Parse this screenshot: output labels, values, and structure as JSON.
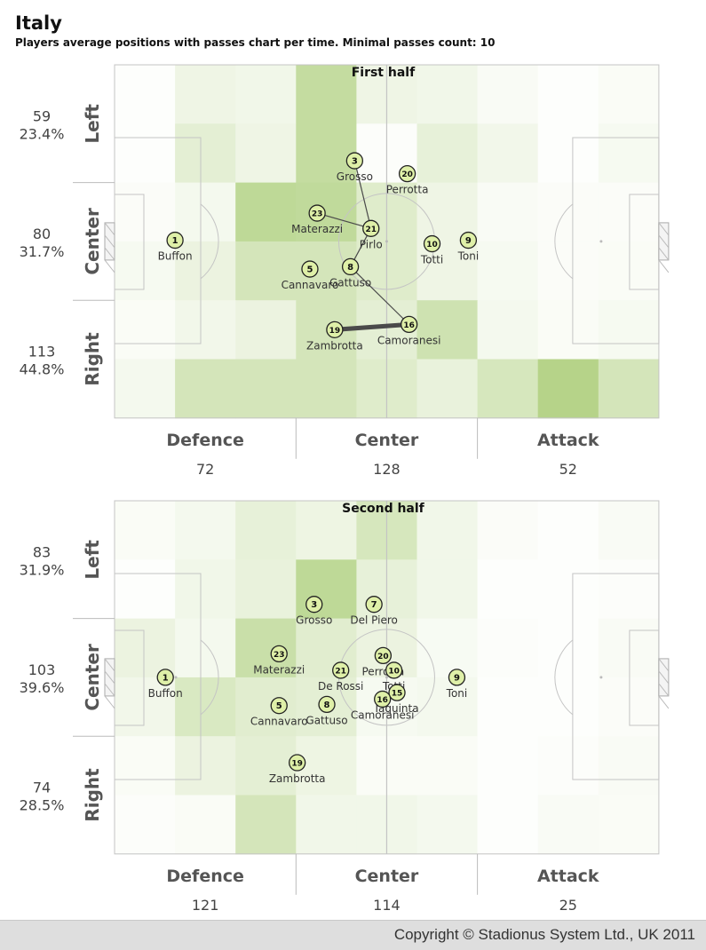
{
  "header": {
    "title": "Italy",
    "subtitle": "Players average positions with passes chart per time. Minimal passes count: 10"
  },
  "footer": {
    "copyright": "Copyright © Stadionus System Ltd., UK 2011"
  },
  "colors": {
    "heat_max": "#93bf52",
    "line": "#4a4a4a",
    "marker_fill": "#dff0a8"
  },
  "chart_data": [
    {
      "type": "heatmap",
      "title": "First half",
      "zone_labels": [
        "Defence",
        "Center",
        "Attack"
      ],
      "zone_counts": [
        "72",
        "128",
        "52"
      ],
      "band_labels": [
        "Left",
        "Center",
        "Right"
      ],
      "band_counts": [
        "59",
        "80",
        "113"
      ],
      "band_percents": [
        "23.4%",
        "31.7%",
        "44.8%"
      ],
      "heat": [
        [
          0.02,
          0.15,
          0.13,
          0.55,
          0.15,
          0.13,
          0.06,
          0.02,
          0.05
        ],
        [
          0.02,
          0.25,
          0.15,
          0.55,
          0.03,
          0.22,
          0.12,
          0.02,
          0.08
        ],
        [
          0.04,
          0.1,
          0.6,
          0.58,
          0.3,
          0.15,
          0.06,
          0.04,
          0.04
        ],
        [
          0.08,
          0.18,
          0.4,
          0.4,
          0.3,
          0.15,
          0.08,
          0.04,
          0.05
        ],
        [
          0.05,
          0.12,
          0.18,
          0.4,
          0.25,
          0.45,
          0.1,
          0.05,
          0.08
        ],
        [
          0.1,
          0.4,
          0.4,
          0.4,
          0.3,
          0.2,
          0.38,
          0.68,
          0.4
        ]
      ],
      "players": [
        {
          "number": "1",
          "name": "Buffon",
          "x": 1.0,
          "y": 2.98
        },
        {
          "number": "3",
          "name": "Grosso",
          "x": 3.97,
          "y": 1.63
        },
        {
          "number": "20",
          "name": "Perrotta",
          "x": 4.84,
          "y": 1.85
        },
        {
          "number": "23",
          "name": "Materazzi",
          "x": 3.35,
          "y": 2.52
        },
        {
          "number": "21",
          "name": "Pirlo",
          "x": 4.24,
          "y": 2.78
        },
        {
          "number": "10",
          "name": "Totti",
          "x": 5.25,
          "y": 3.04
        },
        {
          "number": "9",
          "name": "Toni",
          "x": 5.85,
          "y": 2.98
        },
        {
          "number": "5",
          "name": "Cannavaro",
          "x": 3.23,
          "y": 3.47
        },
        {
          "number": "8",
          "name": "Gattuso",
          "x": 3.9,
          "y": 3.43
        },
        {
          "number": "19",
          "name": "Zambrotta",
          "x": 3.64,
          "y": 4.5
        },
        {
          "number": "16",
          "name": "Camoranesi",
          "x": 4.87,
          "y": 4.41
        }
      ],
      "passes": [
        {
          "from": "3",
          "to": "21",
          "weight": 1
        },
        {
          "from": "23",
          "to": "21",
          "weight": 1
        },
        {
          "from": "21",
          "to": "8",
          "weight": 1
        },
        {
          "from": "8",
          "to": "16",
          "weight": 1
        },
        {
          "from": "19",
          "to": "16",
          "weight": 3
        }
      ]
    },
    {
      "type": "heatmap",
      "title": "Second half",
      "zone_labels": [
        "Defence",
        "Center",
        "Attack"
      ],
      "zone_counts": [
        "121",
        "114",
        "25"
      ],
      "band_labels": [
        "Left",
        "Center",
        "Right"
      ],
      "band_counts": [
        "83",
        "103",
        "74"
      ],
      "band_percents": [
        "31.9%",
        "39.6%",
        "28.5%"
      ],
      "heat": [
        [
          0.05,
          0.1,
          0.22,
          0.16,
          0.38,
          0.13,
          0.04,
          0.02,
          0.06
        ],
        [
          0.02,
          0.13,
          0.2,
          0.6,
          0.22,
          0.13,
          0.02,
          0.02,
          0.03
        ],
        [
          0.18,
          0.1,
          0.5,
          0.28,
          0.18,
          0.07,
          0.03,
          0.02,
          0.06
        ],
        [
          0.12,
          0.35,
          0.28,
          0.25,
          0.08,
          0.1,
          0.02,
          0.02,
          0.04
        ],
        [
          0.05,
          0.18,
          0.25,
          0.16,
          0.05,
          0.05,
          0.02,
          0.03,
          0.06
        ],
        [
          0.03,
          0.05,
          0.4,
          0.13,
          0.13,
          0.1,
          0.02,
          0.06,
          0.05
        ]
      ],
      "players": [
        {
          "number": "1",
          "name": "Buffon",
          "x": 0.84,
          "y": 3.0
        },
        {
          "number": "3",
          "name": "Grosso",
          "x": 3.3,
          "y": 1.76
        },
        {
          "number": "7",
          "name": "Del Piero",
          "x": 4.29,
          "y": 1.76
        },
        {
          "number": "23",
          "name": "Materazzi",
          "x": 2.72,
          "y": 2.6
        },
        {
          "number": "21",
          "name": "De Rossi",
          "x": 3.74,
          "y": 2.88
        },
        {
          "number": "20",
          "name": "Perrotta",
          "x": 4.44,
          "y": 2.63
        },
        {
          "number": "10",
          "name": "Totti",
          "x": 4.62,
          "y": 2.88
        },
        {
          "number": "15",
          "name": "Iaquinta",
          "x": 4.67,
          "y": 3.26
        },
        {
          "number": "16",
          "name": "Camoranesi",
          "x": 4.43,
          "y": 3.37
        },
        {
          "number": "9",
          "name": "Toni",
          "x": 5.66,
          "y": 3.0
        },
        {
          "number": "5",
          "name": "Cannavaro",
          "x": 2.72,
          "y": 3.48
        },
        {
          "number": "8",
          "name": "Gattuso",
          "x": 3.51,
          "y": 3.46
        },
        {
          "number": "19",
          "name": "Zambrotta",
          "x": 3.02,
          "y": 4.45
        }
      ],
      "passes": []
    }
  ]
}
